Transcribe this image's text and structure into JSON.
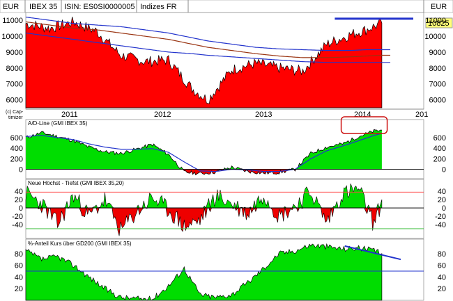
{
  "header": {
    "currency_left": "EUR",
    "symbol": "IBEX 35",
    "isin": "ISIN: ES0SI0000005",
    "category": "Indizes FR",
    "currency_right": "EUR"
  },
  "copyright": "(c) Cap-\ntimizer",
  "last_price_label": "10825",
  "x_axis": {
    "labels": [
      "2011",
      "2012",
      "2013",
      "2014",
      "201"
    ]
  },
  "colors": {
    "bullish_fill": "#00dd00",
    "bearish_fill": "#ee0000",
    "price_fill": "#ff0000",
    "line_blue": "#2233cc",
    "line_brown": "#993311",
    "ref_red": "#ff4444",
    "ref_green": "#33bb33",
    "highlight": "#cc1111",
    "label_bg": "#ffff77"
  },
  "chart_data": [
    {
      "type": "area",
      "name": "price-panel",
      "title": "IBEX 35",
      "ylabel": "EUR",
      "ylim": [
        5500,
        11400
      ],
      "yticks": [
        6000,
        7000,
        8000,
        9000,
        10000,
        11000
      ],
      "x": [
        "2010-08",
        "2010-11",
        "2011-02",
        "2011-05",
        "2011-08",
        "2011-11",
        "2012-02",
        "2012-05",
        "2012-07",
        "2012-10",
        "2013-01",
        "2013-04",
        "2013-07",
        "2013-10",
        "2014-01",
        "2014-03",
        "2014-05"
      ],
      "series": [
        {
          "name": "IBEX 35",
          "values": [
            10800,
            10500,
            10900,
            10300,
            8800,
            8400,
            8500,
            6700,
            6000,
            7900,
            8300,
            8000,
            7800,
            9500,
            10100,
            10400,
            10825
          ]
        },
        {
          "name": "",
          "values": [
            11200,
            11000,
            10800,
            10700,
            10600,
            10400,
            10200,
            9900,
            9700,
            9500,
            9300,
            9200,
            9150,
            9100,
            9100,
            9150,
            9150
          ]
        },
        {
          "name": "",
          "values": [
            10900,
            10700,
            10500,
            10400,
            10200,
            10000,
            9800,
            9500,
            9300,
            9100,
            8900,
            8750,
            8650,
            8650,
            8700,
            8750,
            8800
          ]
        },
        {
          "name": "",
          "values": [
            10200,
            10000,
            9800,
            9600,
            9400,
            9200,
            9000,
            8900,
            8800,
            8700,
            8600,
            8500,
            8400,
            8350,
            8350,
            8350,
            8350
          ]
        }
      ],
      "annotations": [
        {
          "type": "horizontal-line",
          "value": 11100,
          "from": "2013-11",
          "to": "2014-08"
        }
      ]
    },
    {
      "type": "area",
      "name": "ad-line-panel",
      "title": "A/D-Line (GMI IBEX 35)",
      "ylim": [
        -150,
        900
      ],
      "yticks": [
        0,
        200,
        400,
        600
      ],
      "x": [
        "2010-08",
        "2010-10",
        "2010-12",
        "2011-02",
        "2011-04",
        "2011-06",
        "2011-08",
        "2011-10",
        "2011-12",
        "2012-02",
        "2012-04",
        "2012-06",
        "2012-08",
        "2012-10",
        "2012-12",
        "2013-02",
        "2013-04",
        "2013-06",
        "2013-08",
        "2013-10",
        "2013-12",
        "2014-02",
        "2014-04",
        "2014-05"
      ],
      "series": [
        {
          "name": "A/D-Line",
          "values": [
            600,
            690,
            620,
            540,
            420,
            330,
            300,
            380,
            470,
            280,
            -50,
            -80,
            -50,
            40,
            -40,
            -70,
            -60,
            0,
            300,
            420,
            480,
            620,
            720,
            740
          ]
        },
        {
          "name": "",
          "values": [
            620,
            640,
            600,
            560,
            480,
            420,
            380,
            380,
            390,
            320,
            140,
            -30,
            -40,
            0,
            -10,
            -40,
            -40,
            0,
            200,
            350,
            440,
            540,
            640,
            680
          ]
        }
      ],
      "annotations": [
        {
          "type": "highlight-box",
          "from": "2013-12",
          "to": "2014-06"
        }
      ]
    },
    {
      "type": "area",
      "name": "new-highs-lows-panel",
      "title": "Neue Höchst - Tiefst (GMI IBEX 35,20)",
      "ylim": [
        -70,
        62
      ],
      "yticks": [
        -40,
        -20,
        0,
        20,
        40
      ],
      "reference_lines": [
        38,
        0,
        -50
      ],
      "x": [
        "2010-08",
        "2010-10",
        "2010-12",
        "2011-02",
        "2011-04",
        "2011-06",
        "2011-08",
        "2011-10",
        "2011-12",
        "2012-02",
        "2012-04",
        "2012-06",
        "2012-08",
        "2012-10",
        "2012-12",
        "2013-02",
        "2013-04",
        "2013-06",
        "2013-08",
        "2013-10",
        "2013-12",
        "2014-02",
        "2014-04",
        "2014-05"
      ],
      "series": [
        {
          "name": "Neue Höchst - Tiefst",
          "values": [
            35,
            10,
            -40,
            30,
            -20,
            20,
            -55,
            -10,
            25,
            -5,
            -45,
            -30,
            30,
            10,
            -15,
            35,
            -20,
            5,
            40,
            -35,
            35,
            45,
            -40,
            20
          ]
        }
      ]
    },
    {
      "type": "area",
      "name": "pct-above-gd200-panel",
      "title": "%-Anteil Kurs über GD200 (GMI IBEX 35)",
      "ylim": [
        0,
        100
      ],
      "yticks": [
        20,
        40,
        60,
        80
      ],
      "reference_lines": [
        50
      ],
      "x": [
        "2010-08",
        "2010-10",
        "2010-12",
        "2011-02",
        "2011-04",
        "2011-06",
        "2011-08",
        "2011-10",
        "2011-12",
        "2012-02",
        "2012-04",
        "2012-06",
        "2012-08",
        "2012-10",
        "2012-12",
        "2013-02",
        "2013-04",
        "2013-06",
        "2013-08",
        "2013-10",
        "2013-12",
        "2014-02",
        "2014-04",
        "2014-05"
      ],
      "series": [
        {
          "name": "%-Anteil Kurs über GD200",
          "values": [
            85,
            70,
            75,
            60,
            40,
            20,
            5,
            3,
            2,
            25,
            55,
            10,
            5,
            10,
            30,
            55,
            80,
            85,
            95,
            92,
            88,
            90,
            85,
            80
          ]
        }
      ],
      "annotations": [
        {
          "type": "trend-line",
          "from": "2014-02",
          "to": "2014-08",
          "y_from": 93,
          "y_to": 70
        }
      ]
    }
  ]
}
